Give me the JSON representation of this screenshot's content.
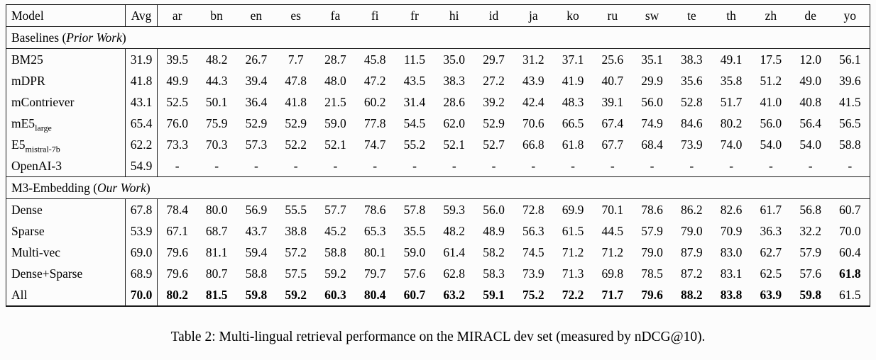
{
  "caption": "Table 2: Multi-lingual retrieval performance on the MIRACL dev set (measured by nDCG@10).",
  "table": {
    "columns": [
      "Model",
      "Avg",
      "ar",
      "bn",
      "en",
      "es",
      "fa",
      "fi",
      "fr",
      "hi",
      "id",
      "ja",
      "ko",
      "ru",
      "sw",
      "te",
      "th",
      "zh",
      "de",
      "yo"
    ],
    "sections": [
      {
        "title_prefix": "Baselines (",
        "title_italic": "Prior Work",
        "title_suffix": ")",
        "rows": [
          {
            "model": "BM25",
            "sub": "",
            "values": [
              "31.9",
              "39.5",
              "48.2",
              "26.7",
              "7.7",
              "28.7",
              "45.8",
              "11.5",
              "35.0",
              "29.7",
              "31.2",
              "37.1",
              "25.6",
              "35.1",
              "38.3",
              "49.1",
              "17.5",
              "12.0",
              "56.1"
            ],
            "bold_indices": []
          },
          {
            "model": "mDPR",
            "sub": "",
            "values": [
              "41.8",
              "49.9",
              "44.3",
              "39.4",
              "47.8",
              "48.0",
              "47.2",
              "43.5",
              "38.3",
              "27.2",
              "43.9",
              "41.9",
              "40.7",
              "29.9",
              "35.6",
              "35.8",
              "51.2",
              "49.0",
              "39.6"
            ],
            "bold_indices": []
          },
          {
            "model": "mContriever",
            "sub": "",
            "values": [
              "43.1",
              "52.5",
              "50.1",
              "36.4",
              "41.8",
              "21.5",
              "60.2",
              "31.4",
              "28.6",
              "39.2",
              "42.4",
              "48.3",
              "39.1",
              "56.0",
              "52.8",
              "51.7",
              "41.0",
              "40.8",
              "41.5"
            ],
            "bold_indices": []
          },
          {
            "model": "mE5",
            "sub": "large",
            "values": [
              "65.4",
              "76.0",
              "75.9",
              "52.9",
              "52.9",
              "59.0",
              "77.8",
              "54.5",
              "62.0",
              "52.9",
              "70.6",
              "66.5",
              "67.4",
              "74.9",
              "84.6",
              "80.2",
              "56.0",
              "56.4",
              "56.5"
            ],
            "bold_indices": []
          },
          {
            "model": "E5",
            "sub": "mistral-7b",
            "values": [
              "62.2",
              "73.3",
              "70.3",
              "57.3",
              "52.2",
              "52.1",
              "74.7",
              "55.2",
              "52.1",
              "52.7",
              "66.8",
              "61.8",
              "67.7",
              "68.4",
              "73.9",
              "74.0",
              "54.0",
              "54.0",
              "58.8"
            ],
            "bold_indices": []
          },
          {
            "model": "OpenAI-3",
            "sub": "",
            "values": [
              "54.9",
              "-",
              "-",
              "-",
              "-",
              "-",
              "-",
              "-",
              "-",
              "-",
              "-",
              "-",
              "-",
              "-",
              "-",
              "-",
              "-",
              "-",
              "-"
            ],
            "bold_indices": []
          }
        ]
      },
      {
        "title_prefix": "M3-Embedding (",
        "title_italic": "Our Work",
        "title_suffix": ")",
        "rows": [
          {
            "model": "Dense",
            "sub": "",
            "values": [
              "67.8",
              "78.4",
              "80.0",
              "56.9",
              "55.5",
              "57.7",
              "78.6",
              "57.8",
              "59.3",
              "56.0",
              "72.8",
              "69.9",
              "70.1",
              "78.6",
              "86.2",
              "82.6",
              "61.7",
              "56.8",
              "60.7"
            ],
            "bold_indices": []
          },
          {
            "model": "Sparse",
            "sub": "",
            "values": [
              "53.9",
              "67.1",
              "68.7",
              "43.7",
              "38.8",
              "45.2",
              "65.3",
              "35.5",
              "48.2",
              "48.9",
              "56.3",
              "61.5",
              "44.5",
              "57.9",
              "79.0",
              "70.9",
              "36.3",
              "32.2",
              "70.0"
            ],
            "bold_indices": []
          },
          {
            "model": "Multi-vec",
            "sub": "",
            "values": [
              "69.0",
              "79.6",
              "81.1",
              "59.4",
              "57.2",
              "58.8",
              "80.1",
              "59.0",
              "61.4",
              "58.2",
              "74.5",
              "71.2",
              "71.2",
              "79.0",
              "87.9",
              "83.0",
              "62.7",
              "57.9",
              "60.4"
            ],
            "bold_indices": []
          },
          {
            "model": "Dense+Sparse",
            "sub": "",
            "values": [
              "68.9",
              "79.6",
              "80.7",
              "58.8",
              "57.5",
              "59.2",
              "79.7",
              "57.6",
              "62.8",
              "58.3",
              "73.9",
              "71.3",
              "69.8",
              "78.5",
              "87.2",
              "83.1",
              "62.5",
              "57.6",
              "61.8"
            ],
            "bold_indices": [
              18
            ]
          },
          {
            "model": "All",
            "sub": "",
            "values": [
              "70.0",
              "80.2",
              "81.5",
              "59.8",
              "59.2",
              "60.3",
              "80.4",
              "60.7",
              "63.2",
              "59.1",
              "75.2",
              "72.2",
              "71.7",
              "79.6",
              "88.2",
              "83.8",
              "63.9",
              "59.8",
              "61.5"
            ],
            "bold_indices": [
              0,
              1,
              2,
              3,
              4,
              5,
              6,
              7,
              8,
              9,
              10,
              11,
              12,
              13,
              14,
              15,
              16,
              17
            ]
          }
        ]
      }
    ]
  }
}
